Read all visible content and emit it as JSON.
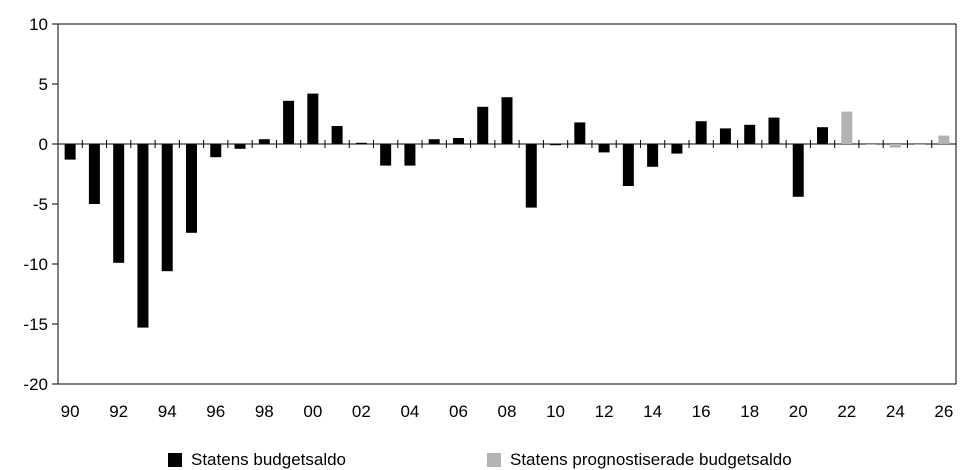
{
  "chart_data": {
    "type": "bar",
    "title": "",
    "xlabel": "",
    "ylabel": "",
    "ylim": [
      -20,
      10
    ],
    "yticks": [
      "10",
      "5",
      "0",
      "-5",
      "-10",
      "-15",
      "-20"
    ],
    "x_tick_labels": [
      "90",
      "92",
      "94",
      "96",
      "98",
      "00",
      "02",
      "04",
      "06",
      "08",
      "10",
      "12",
      "14",
      "16",
      "18",
      "20",
      "22",
      "24",
      "26"
    ],
    "categories": [
      "1990",
      "1991",
      "1992",
      "1993",
      "1994",
      "1995",
      "1996",
      "1997",
      "1998",
      "1999",
      "2000",
      "2001",
      "2002",
      "2003",
      "2004",
      "2005",
      "2006",
      "2007",
      "2008",
      "2009",
      "2010",
      "2011",
      "2012",
      "2013",
      "2014",
      "2015",
      "2016",
      "2017",
      "2018",
      "2019",
      "2020",
      "2021",
      "2022",
      "2023",
      "2024",
      "2025",
      "2026"
    ],
    "series": [
      {
        "name": "Statens budgetsaldo",
        "color": "#000000",
        "values": [
          -1.3,
          -5.0,
          -9.9,
          -15.3,
          -10.6,
          -7.4,
          -1.1,
          -0.4,
          0.4,
          3.6,
          4.2,
          1.5,
          0.1,
          -1.8,
          -1.8,
          0.4,
          0.5,
          3.1,
          3.9,
          -5.3,
          -0.1,
          1.8,
          -0.7,
          -3.5,
          -1.9,
          -0.8,
          1.9,
          1.3,
          1.6,
          2.2,
          -4.4,
          1.4,
          null,
          null,
          null,
          null,
          null
        ]
      },
      {
        "name": "Statens prognostiserade budgetsaldo",
        "color": "#b3b3b3",
        "values": [
          null,
          null,
          null,
          null,
          null,
          null,
          null,
          null,
          null,
          null,
          null,
          null,
          null,
          null,
          null,
          null,
          null,
          null,
          null,
          null,
          null,
          null,
          null,
          null,
          null,
          null,
          null,
          null,
          null,
          null,
          null,
          null,
          2.7,
          0.0,
          -0.3,
          0.0,
          0.7
        ]
      }
    ],
    "grid": false,
    "legend_position": "bottom"
  }
}
